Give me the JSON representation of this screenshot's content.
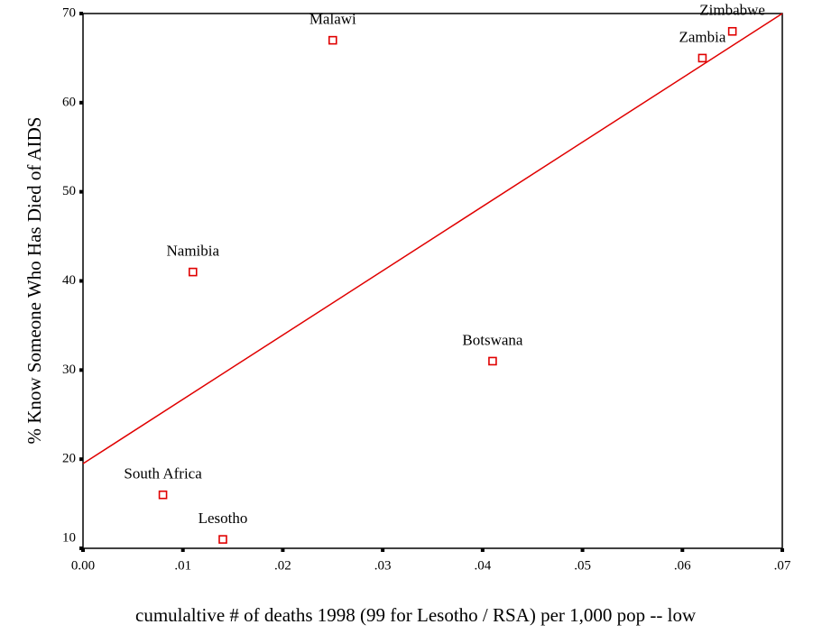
{
  "chart_data": {
    "type": "scatter",
    "x_label": "cumulaltive # of deaths 1998 (99 for Lesotho / RSA) per 1,000 pop -- low",
    "y_label": "% Know Someone Who Has Died of AIDS",
    "labels": [
      "South Africa",
      "Lesotho",
      "Namibia",
      "Malawi",
      "Botswana",
      "Zambia",
      "Zimbabwe"
    ],
    "x": [
      0.008,
      0.014,
      0.011,
      0.025,
      0.041,
      0.062,
      0.065
    ],
    "values": [
      16,
      11,
      41,
      67,
      31,
      65,
      68
    ],
    "color": "#e00000",
    "trend_line": {
      "x": [
        0,
        0.07
      ],
      "y": [
        19.5,
        70
      ],
      "color": "#e00000"
    },
    "xlim": [
      0,
      0.07
    ],
    "ylim": [
      10,
      70
    ],
    "xticks": [
      {
        "value": 0,
        "label": "0.00"
      },
      {
        "value": 0.01,
        "label": ".01"
      },
      {
        "value": 0.02,
        "label": ".02"
      },
      {
        "value": 0.03,
        "label": ".03"
      },
      {
        "value": 0.04,
        "label": ".04"
      },
      {
        "value": 0.05,
        "label": ".05"
      },
      {
        "value": 0.06,
        "label": ".06"
      },
      {
        "value": 0.07,
        "label": ".07"
      }
    ],
    "yticks": [
      10,
      20,
      30,
      40,
      50,
      60,
      70
    ]
  }
}
